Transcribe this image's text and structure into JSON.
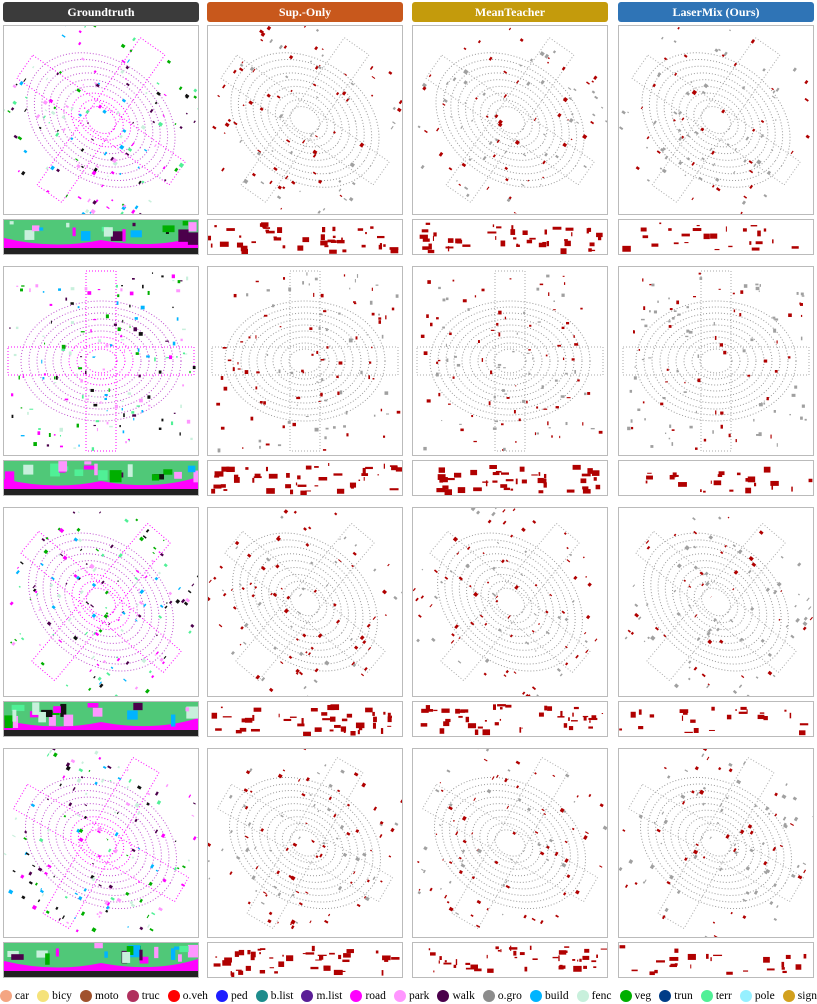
{
  "columns": [
    {
      "label": "Groundtruth",
      "color": "#3b3b3b"
    },
    {
      "label": "Sup.-Only",
      "color": "#c8581c"
    },
    {
      "label": "MeanTeacher",
      "color": "#c49b0c"
    },
    {
      "label": "LaserMix (Ours)",
      "color": "#2f74b6"
    }
  ],
  "legend": [
    {
      "name": "car",
      "color": "#f4a582"
    },
    {
      "name": "bicy",
      "color": "#f5e27a"
    },
    {
      "name": "moto",
      "color": "#a0522d"
    },
    {
      "name": "truc",
      "color": "#b0305e"
    },
    {
      "name": "o.veh",
      "color": "#ff0000"
    },
    {
      "name": "ped",
      "color": "#1e1eff"
    },
    {
      "name": "b.list",
      "color": "#1e8c8c"
    },
    {
      "name": "m.list",
      "color": "#5a1e96"
    },
    {
      "name": "road",
      "color": "#ff00ff"
    },
    {
      "name": "park",
      "color": "#ff96ff"
    },
    {
      "name": "walk",
      "color": "#4b004b"
    },
    {
      "name": "o.gro",
      "color": "#8c8c8c"
    },
    {
      "name": "build",
      "color": "#00b4ff"
    },
    {
      "name": "fenc",
      "color": "#c8f0dc"
    },
    {
      "name": "veg",
      "color": "#00af00"
    },
    {
      "name": "trun",
      "color": "#003c87"
    },
    {
      "name": "terr",
      "color": "#50f096"
    },
    {
      "name": "pole",
      "color": "#96f0ff"
    },
    {
      "name": "sign",
      "color": "#d2a01e"
    }
  ]
}
